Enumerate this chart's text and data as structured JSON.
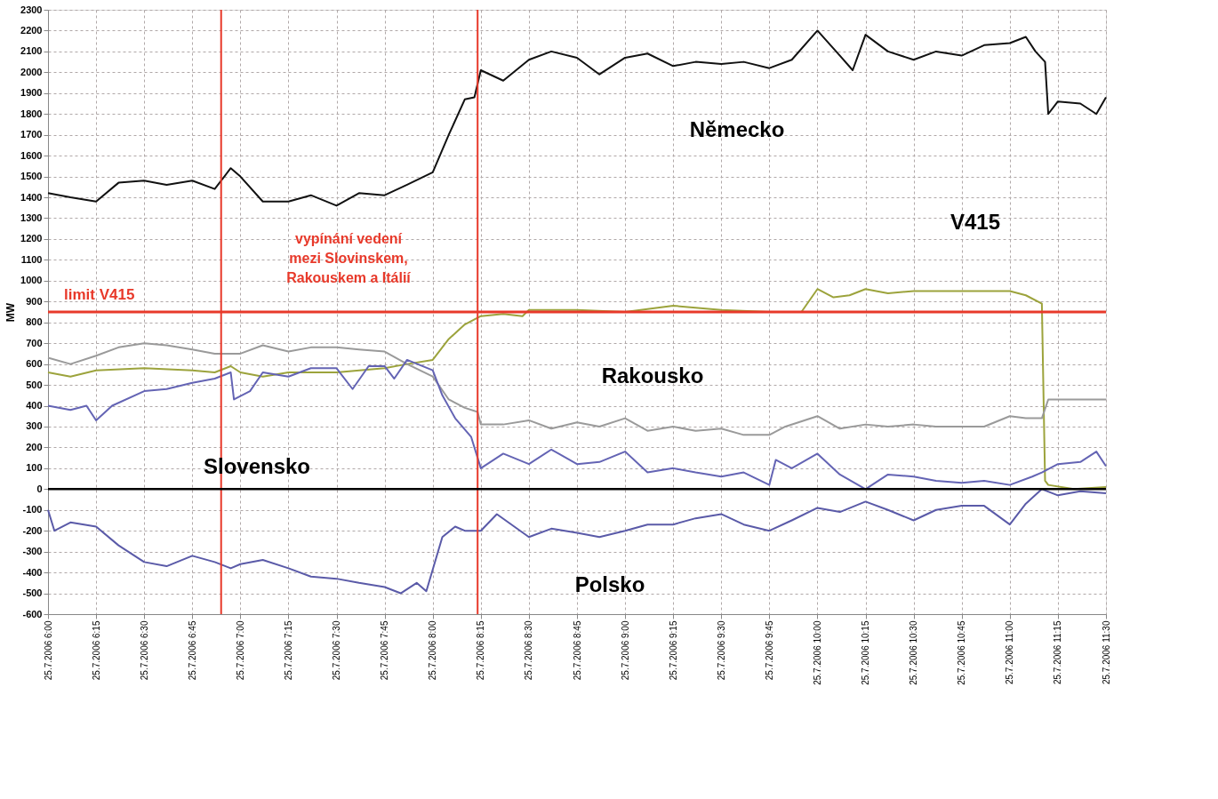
{
  "chart_data": {
    "type": "line",
    "ylabel": "MW",
    "xlim": [
      "2006-07-25T06:00",
      "2006-07-25T11:30"
    ],
    "ylim": [
      -600,
      2300
    ],
    "yticks": [
      -600,
      -500,
      -400,
      -300,
      -200,
      -100,
      0,
      100,
      200,
      300,
      400,
      500,
      600,
      700,
      800,
      900,
      1000,
      1100,
      1200,
      1300,
      1400,
      1500,
      1600,
      1700,
      1800,
      1900,
      2000,
      2100,
      2200,
      2300
    ],
    "xticks": [
      {
        "value": "2006-07-25T06:00",
        "label": "25.7.2006 6:00"
      },
      {
        "value": "2006-07-25T06:15",
        "label": "25.7.2006 6:15"
      },
      {
        "value": "2006-07-25T06:30",
        "label": "25.7.2006 6:30"
      },
      {
        "value": "2006-07-25T06:45",
        "label": "25.7.2006 6:45"
      },
      {
        "value": "2006-07-25T07:00",
        "label": "25.7.2006 7:00"
      },
      {
        "value": "2006-07-25T07:15",
        "label": "25.7.2006 7:15"
      },
      {
        "value": "2006-07-25T07:30",
        "label": "25.7.2006 7:30"
      },
      {
        "value": "2006-07-25T07:45",
        "label": "25.7.2006 7:45"
      },
      {
        "value": "2006-07-25T08:00",
        "label": "25.7.2006 8:00"
      },
      {
        "value": "2006-07-25T08:15",
        "label": "25.7.2006 8:15"
      },
      {
        "value": "2006-07-25T08:30",
        "label": "25.7.2006 8:30"
      },
      {
        "value": "2006-07-25T08:45",
        "label": "25.7.2006 8:45"
      },
      {
        "value": "2006-07-25T09:00",
        "label": "25.7.2006 9:00"
      },
      {
        "value": "2006-07-25T09:15",
        "label": "25.7.2006 9:15"
      },
      {
        "value": "2006-07-25T09:30",
        "label": "25.7.2006 9:30"
      },
      {
        "value": "2006-07-25T09:45",
        "label": "25.7.2006 9:45"
      },
      {
        "value": "2006-07-25T10:00",
        "label": "25.7.2006 10:00"
      },
      {
        "value": "2006-07-25T10:15",
        "label": "25.7.2006 10:15"
      },
      {
        "value": "2006-07-25T10:30",
        "label": "25.7.2006 10:30"
      },
      {
        "value": "2006-07-25T10:45",
        "label": "25.7.2006 10:45"
      },
      {
        "value": "2006-07-25T11:00",
        "label": "25.7.2006 11:00"
      },
      {
        "value": "2006-07-25T11:15",
        "label": "25.7.2006 11:15"
      },
      {
        "value": "2006-07-25T11:30",
        "label": "25.7.2006 11:30"
      }
    ],
    "grid": true,
    "marker": "none",
    "line_style": "solid",
    "series": [
      {
        "name": "Německo",
        "color": "#111111",
        "x": [
          "2006-07-25T06:00",
          "2006-07-25T06:07",
          "2006-07-25T06:15",
          "2006-07-25T06:22",
          "2006-07-25T06:30",
          "2006-07-25T06:37",
          "2006-07-25T06:45",
          "2006-07-25T06:52",
          "2006-07-25T06:57",
          "2006-07-25T07:00",
          "2006-07-25T07:07",
          "2006-07-25T07:15",
          "2006-07-25T07:22",
          "2006-07-25T07:30",
          "2006-07-25T07:37",
          "2006-07-25T07:45",
          "2006-07-25T07:52",
          "2006-07-25T08:00",
          "2006-07-25T08:05",
          "2006-07-25T08:10",
          "2006-07-25T08:13",
          "2006-07-25T08:15",
          "2006-07-25T08:22",
          "2006-07-25T08:30",
          "2006-07-25T08:37",
          "2006-07-25T08:45",
          "2006-07-25T08:52",
          "2006-07-25T09:00",
          "2006-07-25T09:07",
          "2006-07-25T09:15",
          "2006-07-25T09:22",
          "2006-07-25T09:30",
          "2006-07-25T09:37",
          "2006-07-25T09:45",
          "2006-07-25T09:52",
          "2006-07-25T10:00",
          "2006-07-25T10:07",
          "2006-07-25T10:11",
          "2006-07-25T10:15",
          "2006-07-25T10:22",
          "2006-07-25T10:30",
          "2006-07-25T10:37",
          "2006-07-25T10:45",
          "2006-07-25T10:52",
          "2006-07-25T11:00",
          "2006-07-25T11:05",
          "2006-07-25T11:08",
          "2006-07-25T11:11",
          "2006-07-25T11:12",
          "2006-07-25T11:15",
          "2006-07-25T11:22",
          "2006-07-25T11:27",
          "2006-07-25T11:30"
        ],
        "values": [
          1420,
          1400,
          1380,
          1470,
          1480,
          1460,
          1480,
          1440,
          1540,
          1500,
          1380,
          1380,
          1410,
          1360,
          1420,
          1410,
          1460,
          1520,
          1700,
          1870,
          1880,
          2010,
          1960,
          2060,
          2100,
          2070,
          1990,
          2070,
          2090,
          2030,
          2050,
          2040,
          2050,
          2020,
          2060,
          2200,
          2080,
          2010,
          2180,
          2100,
          2060,
          2100,
          2080,
          2130,
          2140,
          2170,
          2100,
          2050,
          1800,
          1860,
          1850,
          1800,
          1880
        ]
      },
      {
        "name": "V415",
        "color": "#9ca33c",
        "x": [
          "2006-07-25T06:00",
          "2006-07-25T06:07",
          "2006-07-25T06:15",
          "2006-07-25T06:30",
          "2006-07-25T06:45",
          "2006-07-25T06:52",
          "2006-07-25T06:57",
          "2006-07-25T07:00",
          "2006-07-25T07:07",
          "2006-07-25T07:15",
          "2006-07-25T07:30",
          "2006-07-25T07:45",
          "2006-07-25T07:52",
          "2006-07-25T08:00",
          "2006-07-25T08:05",
          "2006-07-25T08:10",
          "2006-07-25T08:15",
          "2006-07-25T08:22",
          "2006-07-25T08:28",
          "2006-07-25T08:30",
          "2006-07-25T08:45",
          "2006-07-25T09:00",
          "2006-07-25T09:15",
          "2006-07-25T09:30",
          "2006-07-25T09:45",
          "2006-07-25T09:55",
          "2006-07-25T10:00",
          "2006-07-25T10:05",
          "2006-07-25T10:10",
          "2006-07-25T10:15",
          "2006-07-25T10:22",
          "2006-07-25T10:30",
          "2006-07-25T10:45",
          "2006-07-25T11:00",
          "2006-07-25T11:05",
          "2006-07-25T11:10",
          "2006-07-25T11:11",
          "2006-07-25T11:12",
          "2006-07-25T11:20",
          "2006-07-25T11:30"
        ],
        "values": [
          560,
          540,
          570,
          580,
          570,
          560,
          590,
          560,
          540,
          560,
          560,
          580,
          600,
          620,
          720,
          790,
          830,
          840,
          830,
          860,
          860,
          850,
          880,
          860,
          850,
          850,
          960,
          920,
          930,
          960,
          940,
          950,
          950,
          950,
          930,
          890,
          40,
          20,
          0,
          10
        ]
      },
      {
        "name": "Rakousko",
        "color": "#9a9a9a",
        "x": [
          "2006-07-25T06:00",
          "2006-07-25T06:07",
          "2006-07-25T06:15",
          "2006-07-25T06:22",
          "2006-07-25T06:30",
          "2006-07-25T06:37",
          "2006-07-25T06:45",
          "2006-07-25T06:52",
          "2006-07-25T07:00",
          "2006-07-25T07:07",
          "2006-07-25T07:15",
          "2006-07-25T07:22",
          "2006-07-25T07:30",
          "2006-07-25T07:37",
          "2006-07-25T07:45",
          "2006-07-25T07:52",
          "2006-07-25T08:00",
          "2006-07-25T08:05",
          "2006-07-25T08:10",
          "2006-07-25T08:14",
          "2006-07-25T08:15",
          "2006-07-25T08:22",
          "2006-07-25T08:30",
          "2006-07-25T08:37",
          "2006-07-25T08:45",
          "2006-07-25T08:52",
          "2006-07-25T09:00",
          "2006-07-25T09:07",
          "2006-07-25T09:15",
          "2006-07-25T09:22",
          "2006-07-25T09:30",
          "2006-07-25T09:37",
          "2006-07-25T09:45",
          "2006-07-25T09:50",
          "2006-07-25T10:00",
          "2006-07-25T10:07",
          "2006-07-25T10:15",
          "2006-07-25T10:22",
          "2006-07-25T10:30",
          "2006-07-25T10:37",
          "2006-07-25T10:45",
          "2006-07-25T10:52",
          "2006-07-25T11:00",
          "2006-07-25T11:05",
          "2006-07-25T11:10",
          "2006-07-25T11:12",
          "2006-07-25T11:20",
          "2006-07-25T11:30"
        ],
        "values": [
          630,
          600,
          640,
          680,
          700,
          690,
          670,
          650,
          650,
          690,
          660,
          680,
          680,
          670,
          660,
          600,
          540,
          430,
          390,
          370,
          310,
          310,
          330,
          290,
          320,
          300,
          340,
          280,
          300,
          280,
          290,
          260,
          260,
          300,
          350,
          290,
          310,
          300,
          310,
          300,
          300,
          300,
          350,
          340,
          340,
          430,
          430,
          430
        ]
      },
      {
        "name": "Slovensko",
        "color": "#6464b4",
        "x": [
          "2006-07-25T06:00",
          "2006-07-25T06:07",
          "2006-07-25T06:12",
          "2006-07-25T06:15",
          "2006-07-25T06:20",
          "2006-07-25T06:30",
          "2006-07-25T06:37",
          "2006-07-25T06:45",
          "2006-07-25T06:52",
          "2006-07-25T06:57",
          "2006-07-25T06:58",
          "2006-07-25T07:03",
          "2006-07-25T07:07",
          "2006-07-25T07:15",
          "2006-07-25T07:22",
          "2006-07-25T07:30",
          "2006-07-25T07:35",
          "2006-07-25T07:40",
          "2006-07-25T07:45",
          "2006-07-25T07:48",
          "2006-07-25T07:52",
          "2006-07-25T08:00",
          "2006-07-25T08:03",
          "2006-07-25T08:07",
          "2006-07-25T08:12",
          "2006-07-25T08:15",
          "2006-07-25T08:22",
          "2006-07-25T08:30",
          "2006-07-25T08:37",
          "2006-07-25T08:45",
          "2006-07-25T08:52",
          "2006-07-25T09:00",
          "2006-07-25T09:07",
          "2006-07-25T09:15",
          "2006-07-25T09:22",
          "2006-07-25T09:30",
          "2006-07-25T09:37",
          "2006-07-25T09:45",
          "2006-07-25T09:47",
          "2006-07-25T09:52",
          "2006-07-25T10:00",
          "2006-07-25T10:07",
          "2006-07-25T10:15",
          "2006-07-25T10:22",
          "2006-07-25T10:30",
          "2006-07-25T10:37",
          "2006-07-25T10:45",
          "2006-07-25T10:52",
          "2006-07-25T11:00",
          "2006-07-25T11:07",
          "2006-07-25T11:10",
          "2006-07-25T11:15",
          "2006-07-25T11:22",
          "2006-07-25T11:27",
          "2006-07-25T11:30"
        ],
        "values": [
          400,
          380,
          400,
          330,
          400,
          470,
          480,
          510,
          530,
          560,
          430,
          470,
          560,
          540,
          580,
          580,
          480,
          590,
          590,
          530,
          620,
          570,
          450,
          340,
          250,
          100,
          170,
          120,
          190,
          120,
          130,
          180,
          80,
          100,
          80,
          60,
          80,
          20,
          140,
          100,
          170,
          70,
          0,
          70,
          60,
          40,
          30,
          40,
          20,
          60,
          80,
          120,
          130,
          180,
          110
        ]
      },
      {
        "name": "Polsko",
        "color": "#5a5aa8",
        "x": [
          "2006-07-25T06:00",
          "2006-07-25T06:02",
          "2006-07-25T06:07",
          "2006-07-25T06:15",
          "2006-07-25T06:22",
          "2006-07-25T06:30",
          "2006-07-25T06:37",
          "2006-07-25T06:45",
          "2006-07-25T06:52",
          "2006-07-25T06:57",
          "2006-07-25T07:00",
          "2006-07-25T07:07",
          "2006-07-25T07:15",
          "2006-07-25T07:22",
          "2006-07-25T07:30",
          "2006-07-25T07:37",
          "2006-07-25T07:45",
          "2006-07-25T07:50",
          "2006-07-25T07:55",
          "2006-07-25T07:58",
          "2006-07-25T08:03",
          "2006-07-25T08:07",
          "2006-07-25T08:10",
          "2006-07-25T08:15",
          "2006-07-25T08:20",
          "2006-07-25T08:30",
          "2006-07-25T08:37",
          "2006-07-25T08:45",
          "2006-07-25T08:52",
          "2006-07-25T09:00",
          "2006-07-25T09:07",
          "2006-07-25T09:15",
          "2006-07-25T09:22",
          "2006-07-25T09:30",
          "2006-07-25T09:37",
          "2006-07-25T09:45",
          "2006-07-25T09:52",
          "2006-07-25T10:00",
          "2006-07-25T10:07",
          "2006-07-25T10:15",
          "2006-07-25T10:22",
          "2006-07-25T10:30",
          "2006-07-25T10:37",
          "2006-07-25T10:45",
          "2006-07-25T10:52",
          "2006-07-25T11:00",
          "2006-07-25T11:05",
          "2006-07-25T11:10",
          "2006-07-25T11:15",
          "2006-07-25T11:22",
          "2006-07-25T11:30"
        ],
        "values": [
          -100,
          -200,
          -160,
          -180,
          -270,
          -350,
          -370,
          -320,
          -350,
          -380,
          -360,
          -340,
          -380,
          -420,
          -430,
          -450,
          -470,
          -500,
          -450,
          -490,
          -230,
          -180,
          -200,
          -200,
          -120,
          -230,
          -190,
          -210,
          -230,
          -200,
          -170,
          -170,
          -140,
          -120,
          -170,
          -200,
          -150,
          -90,
          -110,
          -60,
          -100,
          -150,
          -100,
          -80,
          -80,
          -170,
          -70,
          0,
          -30,
          -10,
          -20
        ]
      }
    ],
    "ref_lines": [
      {
        "axis": "x",
        "value": "2006-07-25T06:54",
        "color": "#e8392a"
      },
      {
        "axis": "x",
        "value": "2006-07-25T08:14",
        "color": "#e8392a"
      },
      {
        "axis": "y",
        "value": 850,
        "label": "limit V415",
        "color": "#e8392a"
      },
      {
        "axis": "y",
        "value": 0,
        "color": "#000000"
      }
    ],
    "annotations": [
      "vypínání vedení\nmezi Slovinskem,\nRakouskem a Itálií"
    ]
  }
}
